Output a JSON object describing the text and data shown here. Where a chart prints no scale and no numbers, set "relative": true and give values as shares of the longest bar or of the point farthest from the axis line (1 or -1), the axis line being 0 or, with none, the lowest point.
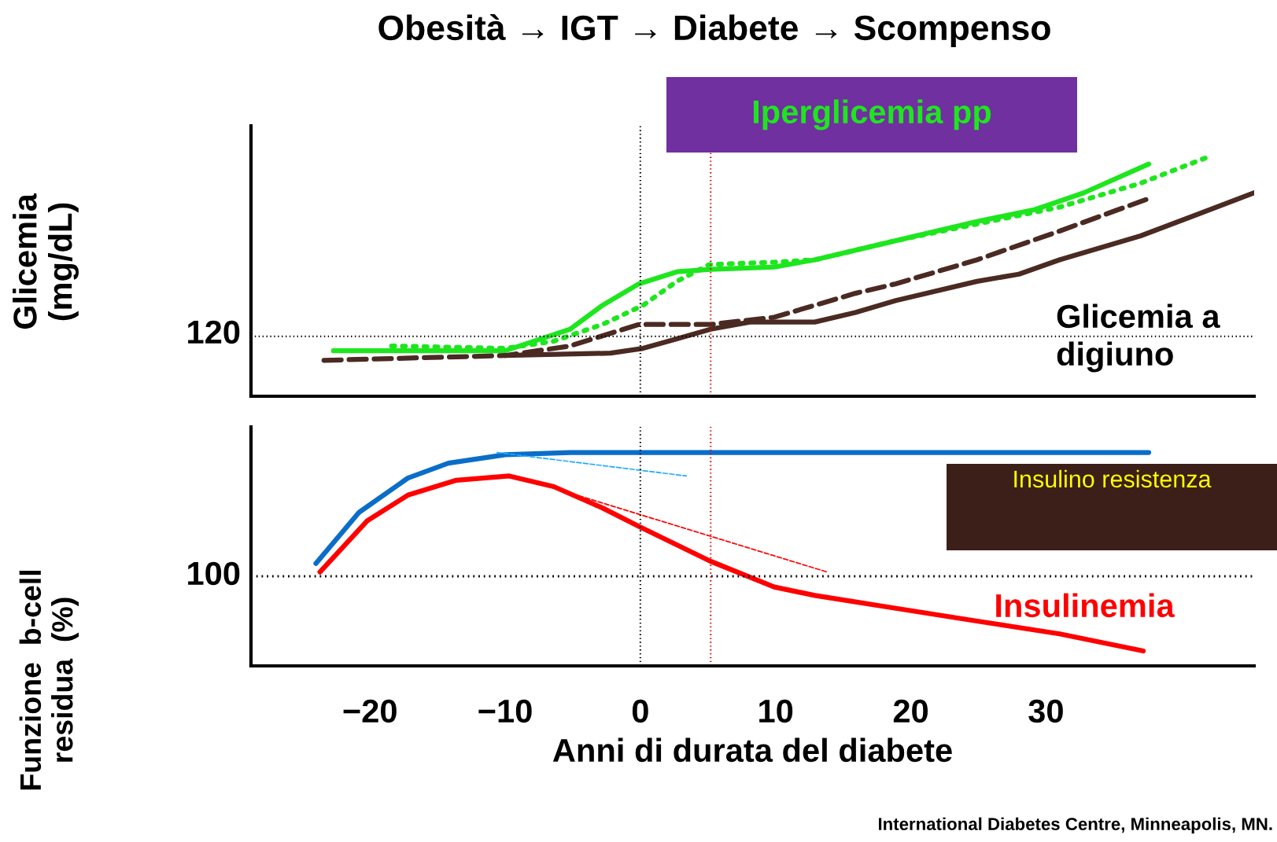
{
  "chart_data": [
    {
      "type": "line",
      "relative": true,
      "ylabel": "Glicemia\n(mg/dL)",
      "xlim": [
        -28.8,
        45.4
      ],
      "tick_labels": false,
      "annotations": [
        "Obesità → IGT → Diabete → Scompenso",
        "Iperglicemia pp",
        "Glicemia a\ndigiuno",
        "120"
      ],
      "ref_lines": [
        {
          "axis": "y",
          "value": 0.25,
          "label": null,
          "color": "#000000",
          "line_style": "dotted"
        },
        {
          "axis": "x",
          "value": 0,
          "label": null,
          "color": "#000000",
          "line_style": "dotted"
        },
        {
          "axis": "x",
          "value": 5.2,
          "label": null,
          "color": "#e00000",
          "line_style": "dotted"
        }
      ],
      "series": [
        {
          "color": "#1ee61e",
          "line_style": "solid",
          "x": [
            -22.7,
            -10.0,
            -5.2,
            -2.8,
            -0.1,
            2.7,
            5.2,
            9.9,
            12.9,
            18.9,
            24.9,
            29.2,
            32.8,
            37.6
          ],
          "values": [
            0.19,
            0.19,
            0.28,
            0.38,
            0.47,
            0.52,
            0.53,
            0.54,
            0.57,
            0.65,
            0.73,
            0.78,
            0.85,
            0.97
          ]
        },
        {
          "color": "#1ee61e",
          "line_style": "dotted",
          "x": [
            -18.4,
            -10.0,
            -6.4,
            -2.8,
            0.2,
            2.7,
            5.1,
            9.9,
            12.9,
            18.9,
            24.9,
            31.0,
            37.0,
            42.0
          ],
          "values": [
            0.21,
            0.2,
            0.23,
            0.3,
            0.38,
            0.48,
            0.55,
            0.56,
            0.57,
            0.65,
            0.72,
            0.79,
            0.89,
            1.0
          ]
        },
        {
          "color": "#4a2a22",
          "line_style": "dashed",
          "x": [
            -23.4,
            -10.0,
            -5.2,
            -0.1,
            5.2,
            9.9,
            15.9,
            18.9,
            24.9,
            31.0,
            37.8
          ],
          "values": [
            0.15,
            0.17,
            0.21,
            0.3,
            0.3,
            0.33,
            0.43,
            0.47,
            0.57,
            0.69,
            0.83
          ]
        },
        {
          "color": "#4a2a22",
          "line_style": "solid",
          "x": [
            -10.0,
            -2.2,
            0.2,
            2.7,
            5.2,
            8.1,
            12.9,
            15.9,
            18.9,
            24.9,
            28.0,
            31.0,
            37.0,
            45.4
          ],
          "values": [
            0.17,
            0.18,
            0.2,
            0.24,
            0.28,
            0.31,
            0.31,
            0.35,
            0.4,
            0.48,
            0.51,
            0.57,
            0.67,
            0.85
          ]
        }
      ]
    },
    {
      "type": "line",
      "relative": true,
      "ylabel": "Funzione  b-cell\nresidua  (%)",
      "xlabel": "Anni di durata del diabete",
      "xlim": [
        -28.8,
        45.4
      ],
      "tick_labels": "x",
      "xticks": [
        {
          "value": -20,
          "label": "−20"
        },
        {
          "value": -10,
          "label": "−10"
        },
        0,
        10,
        20,
        30
      ],
      "annotations": [
        "Insulino resistenza",
        "Insulinemia",
        "International Diabetes Centre, Minneapolis, MN.",
        "100"
      ],
      "ref_lines": [
        {
          "axis": "y",
          "value": 0.42,
          "label": null,
          "color": "#000000",
          "line_style": "dotted"
        },
        {
          "axis": "x",
          "value": 0,
          "label": null,
          "color": "#000000",
          "line_style": "dotted"
        },
        {
          "axis": "x",
          "value": 5.2,
          "label": null,
          "color": "#e00000",
          "line_style": "dotted"
        }
      ],
      "series": [
        {
          "color": "#0a6ec8",
          "line_style": "solid",
          "x": [
            -24.0,
            -20.8,
            -17.2,
            -14.2,
            -10.0,
            -5.2,
            0,
            5.1,
            37.6
          ],
          "values": [
            0.48,
            0.72,
            0.88,
            0.95,
            0.99,
            1.0,
            1.0,
            1.0,
            1.0
          ]
        },
        {
          "color": "#ff0000",
          "line_style": "solid",
          "x": [
            -23.7,
            -20.2,
            -17.2,
            -13.6,
            -9.7,
            -6.4,
            -2.8,
            0,
            5.2,
            9.9,
            12.9,
            18.9,
            24.9,
            31.0,
            37.2
          ],
          "values": [
            0.44,
            0.68,
            0.8,
            0.87,
            0.89,
            0.84,
            0.74,
            0.65,
            0.49,
            0.37,
            0.33,
            0.27,
            0.21,
            0.15,
            0.07
          ]
        },
        {
          "color": "#1eaaff",
          "line_style": "dashed",
          "x": [
            -10.6,
            3.4
          ],
          "values": [
            1.0,
            0.89
          ]
        },
        {
          "color": "#ff0000",
          "line_style": "dashed",
          "x": [
            -8.8,
            13.8
          ],
          "values": [
            0.88,
            0.44
          ]
        }
      ]
    }
  ]
}
